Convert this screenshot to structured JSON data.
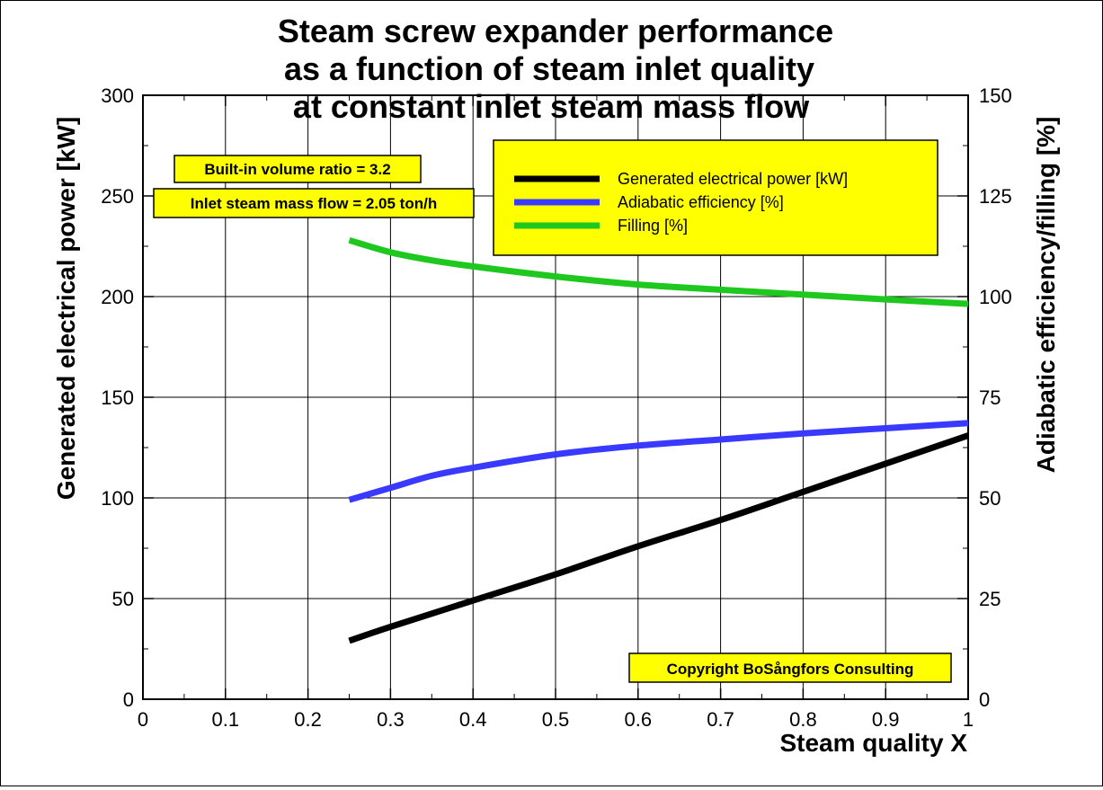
{
  "chart_data": {
    "type": "line",
    "title_lines": [
      "Steam screw expander performance",
      "as a function of steam inlet quality",
      "at constant inlet steam mass flow"
    ],
    "xlabel": "Steam quality X",
    "ylabel": "Generated electrical power [kW]",
    "y2label": "Adiabatic efficiency/filling [%]",
    "xlim": [
      0,
      1
    ],
    "ylim": [
      0,
      300
    ],
    "y2lim": [
      0,
      150
    ],
    "x_ticks": [
      "0",
      "0.1",
      "0.2",
      "0.3",
      "0.4",
      "0.5",
      "0.6",
      "0.7",
      "0.8",
      "0.9",
      "1"
    ],
    "y_ticks": [
      "0",
      "50",
      "100",
      "150",
      "200",
      "250",
      "300"
    ],
    "y2_ticks": [
      "0",
      "25",
      "50",
      "75",
      "100",
      "125",
      "150"
    ],
    "grid": true,
    "legend_position": "top-right",
    "series": [
      {
        "name": "Generated electrical power [kW]",
        "axis": "left",
        "color": "#000000",
        "x": [
          0.25,
          0.3,
          0.4,
          0.5,
          0.6,
          0.7,
          0.8,
          0.9,
          1.0
        ],
        "y": [
          29,
          36,
          49,
          62,
          76,
          89,
          103,
          117,
          131
        ]
      },
      {
        "name": "Adiabatic efficiency [%]",
        "axis": "right",
        "color": "#3a3aff",
        "x": [
          0.25,
          0.3,
          0.35,
          0.4,
          0.5,
          0.6,
          0.7,
          0.8,
          0.9,
          1.0
        ],
        "y": [
          49.5,
          52.5,
          55.5,
          57.5,
          60.8,
          63.0,
          64.5,
          66.0,
          67.3,
          68.6
        ]
      },
      {
        "name": "Filling [%]",
        "axis": "right",
        "color": "#1ec81e",
        "x": [
          0.25,
          0.3,
          0.35,
          0.4,
          0.5,
          0.6,
          0.7,
          0.8,
          0.9,
          1.0
        ],
        "y": [
          114,
          111,
          109,
          107.5,
          105,
          103,
          101.7,
          100.5,
          99.3,
          98.2
        ]
      }
    ],
    "annotations": [
      "Built-in volume ratio = 3.2",
      "Inlet steam mass flow = 2.05 ton/h",
      "Copyright BoSångfors Consulting"
    ]
  },
  "colors": {
    "box_fill": "#ffff00",
    "grid": "#000000"
  }
}
